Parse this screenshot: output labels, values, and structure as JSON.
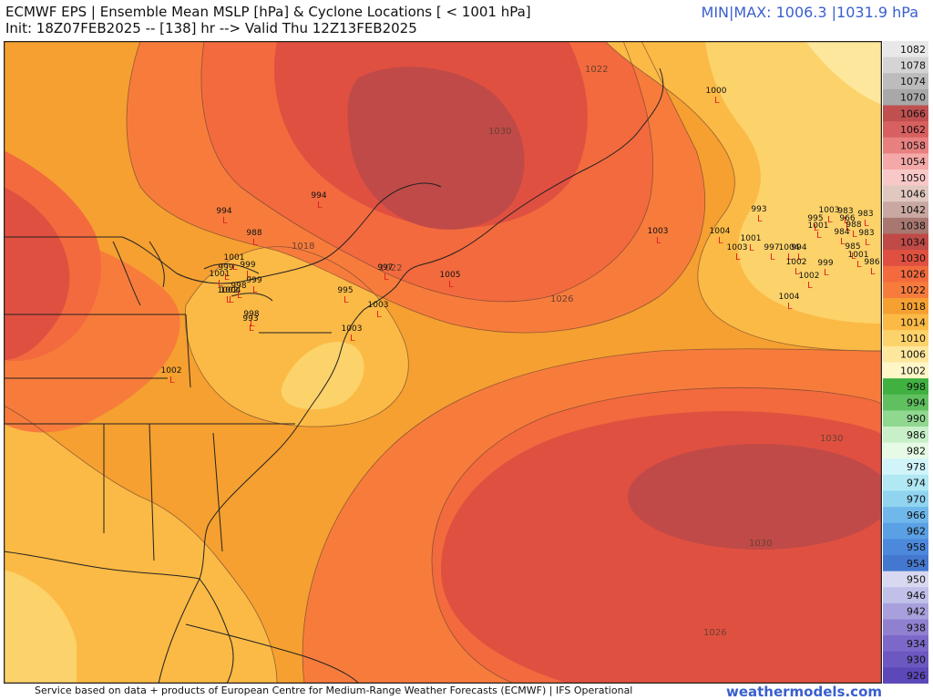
{
  "header": {
    "title": "ECMWF EPS | Ensemble Mean MSLP [hPa] & Cyclone Locations [ < 1001 hPa]",
    "subtitle": "Init: 18Z07FEB2025 -- [138] hr --> Valid Thu 12Z13FEB2025",
    "minmax": "MIN|MAX: 1006.3 |1031.9 hPa"
  },
  "footer": {
    "credit": "Service based on data + products of European Centre for Medium-Range Weather Forecasts (ECMWF) | IFS Operational",
    "brand": "weathermodels.com"
  },
  "colors": {
    "bg_1018": "#f5a030",
    "band_1022": "#f77c3c",
    "band_1026": "#f26a3e",
    "band_1030": "#e05040",
    "band_1034": "#c04a48",
    "band_1014": "#fbba45",
    "band_1010": "#fcd26a",
    "band_1006": "#fde79c",
    "low_marker": "#e02020",
    "border": "#222222",
    "accent": "#3a5fcd"
  },
  "isobar_labels": [
    {
      "text": "1022"
    },
    {
      "text": "1030"
    },
    {
      "text": "1018"
    },
    {
      "text": "1026"
    },
    {
      "text": "1030"
    },
    {
      "text": "1030"
    },
    {
      "text": "1026"
    },
    {
      "text": "1022"
    }
  ],
  "cyclones": [
    {
      "value": "1000"
    },
    {
      "value": "994"
    },
    {
      "value": "994"
    },
    {
      "value": "988"
    },
    {
      "value": "1001"
    },
    {
      "value": "999"
    },
    {
      "value": "1001"
    },
    {
      "value": "999"
    },
    {
      "value": "998"
    },
    {
      "value": "1004"
    },
    {
      "value": "999"
    },
    {
      "value": "998"
    },
    {
      "value": "993"
    },
    {
      "value": "997"
    },
    {
      "value": "995"
    },
    {
      "value": "1003"
    },
    {
      "value": "1003"
    },
    {
      "value": "1005"
    },
    {
      "value": "1002"
    },
    {
      "value": "1003"
    },
    {
      "value": "1004"
    },
    {
      "value": "1003"
    },
    {
      "value": "993"
    },
    {
      "value": "1001"
    },
    {
      "value": "997"
    },
    {
      "value": "1004"
    },
    {
      "value": "994"
    },
    {
      "value": "1002"
    },
    {
      "value": "999"
    },
    {
      "value": "1002"
    },
    {
      "value": "1004"
    },
    {
      "value": "995"
    },
    {
      "value": "1001"
    },
    {
      "value": "1003"
    },
    {
      "value": "983"
    },
    {
      "value": "966"
    },
    {
      "value": "983"
    },
    {
      "value": "988"
    },
    {
      "value": "984"
    },
    {
      "value": "983"
    },
    {
      "value": "985"
    },
    {
      "value": "1001"
    },
    {
      "value": "986"
    },
    {
      "value": "1002"
    }
  ],
  "colorbar": {
    "ticks": [
      "1082",
      "1078",
      "1074",
      "1070",
      "1066",
      "1062",
      "1058",
      "1054",
      "1050",
      "1046",
      "1042",
      "1038",
      "1034",
      "1030",
      "1026",
      "1022",
      "1018",
      "1014",
      "1010",
      "1006",
      "1002",
      "998",
      "994",
      "990",
      "986",
      "982",
      "978",
      "974",
      "970",
      "966",
      "962",
      "958",
      "954",
      "950",
      "946",
      "942",
      "938",
      "934",
      "930",
      "926"
    ],
    "colors": [
      "#e8e8e8",
      "#d4d4d4",
      "#bcbcbc",
      "#a8a8a8",
      "#c05050",
      "#d86060",
      "#e88080",
      "#f4a8a8",
      "#f8c8c8",
      "#e0c8c0",
      "#c8a8a0",
      "#a87870",
      "#c04a48",
      "#e05040",
      "#f26a3e",
      "#f77c3c",
      "#f5a030",
      "#fbba45",
      "#fcd26a",
      "#fde79c",
      "#fff6c8",
      "#40b040",
      "#60c060",
      "#90d890",
      "#c8f0c8",
      "#e6fae6",
      "#d0f4fa",
      "#b0e8f4",
      "#90d4f0",
      "#70b8ec",
      "#5aa0e4",
      "#4c88dc",
      "#4478d0",
      "#d8d8f0",
      "#c0c0e8",
      "#a8a0dc",
      "#9080d0",
      "#7c68c8",
      "#6c58c0",
      "#5c48b8"
    ]
  }
}
